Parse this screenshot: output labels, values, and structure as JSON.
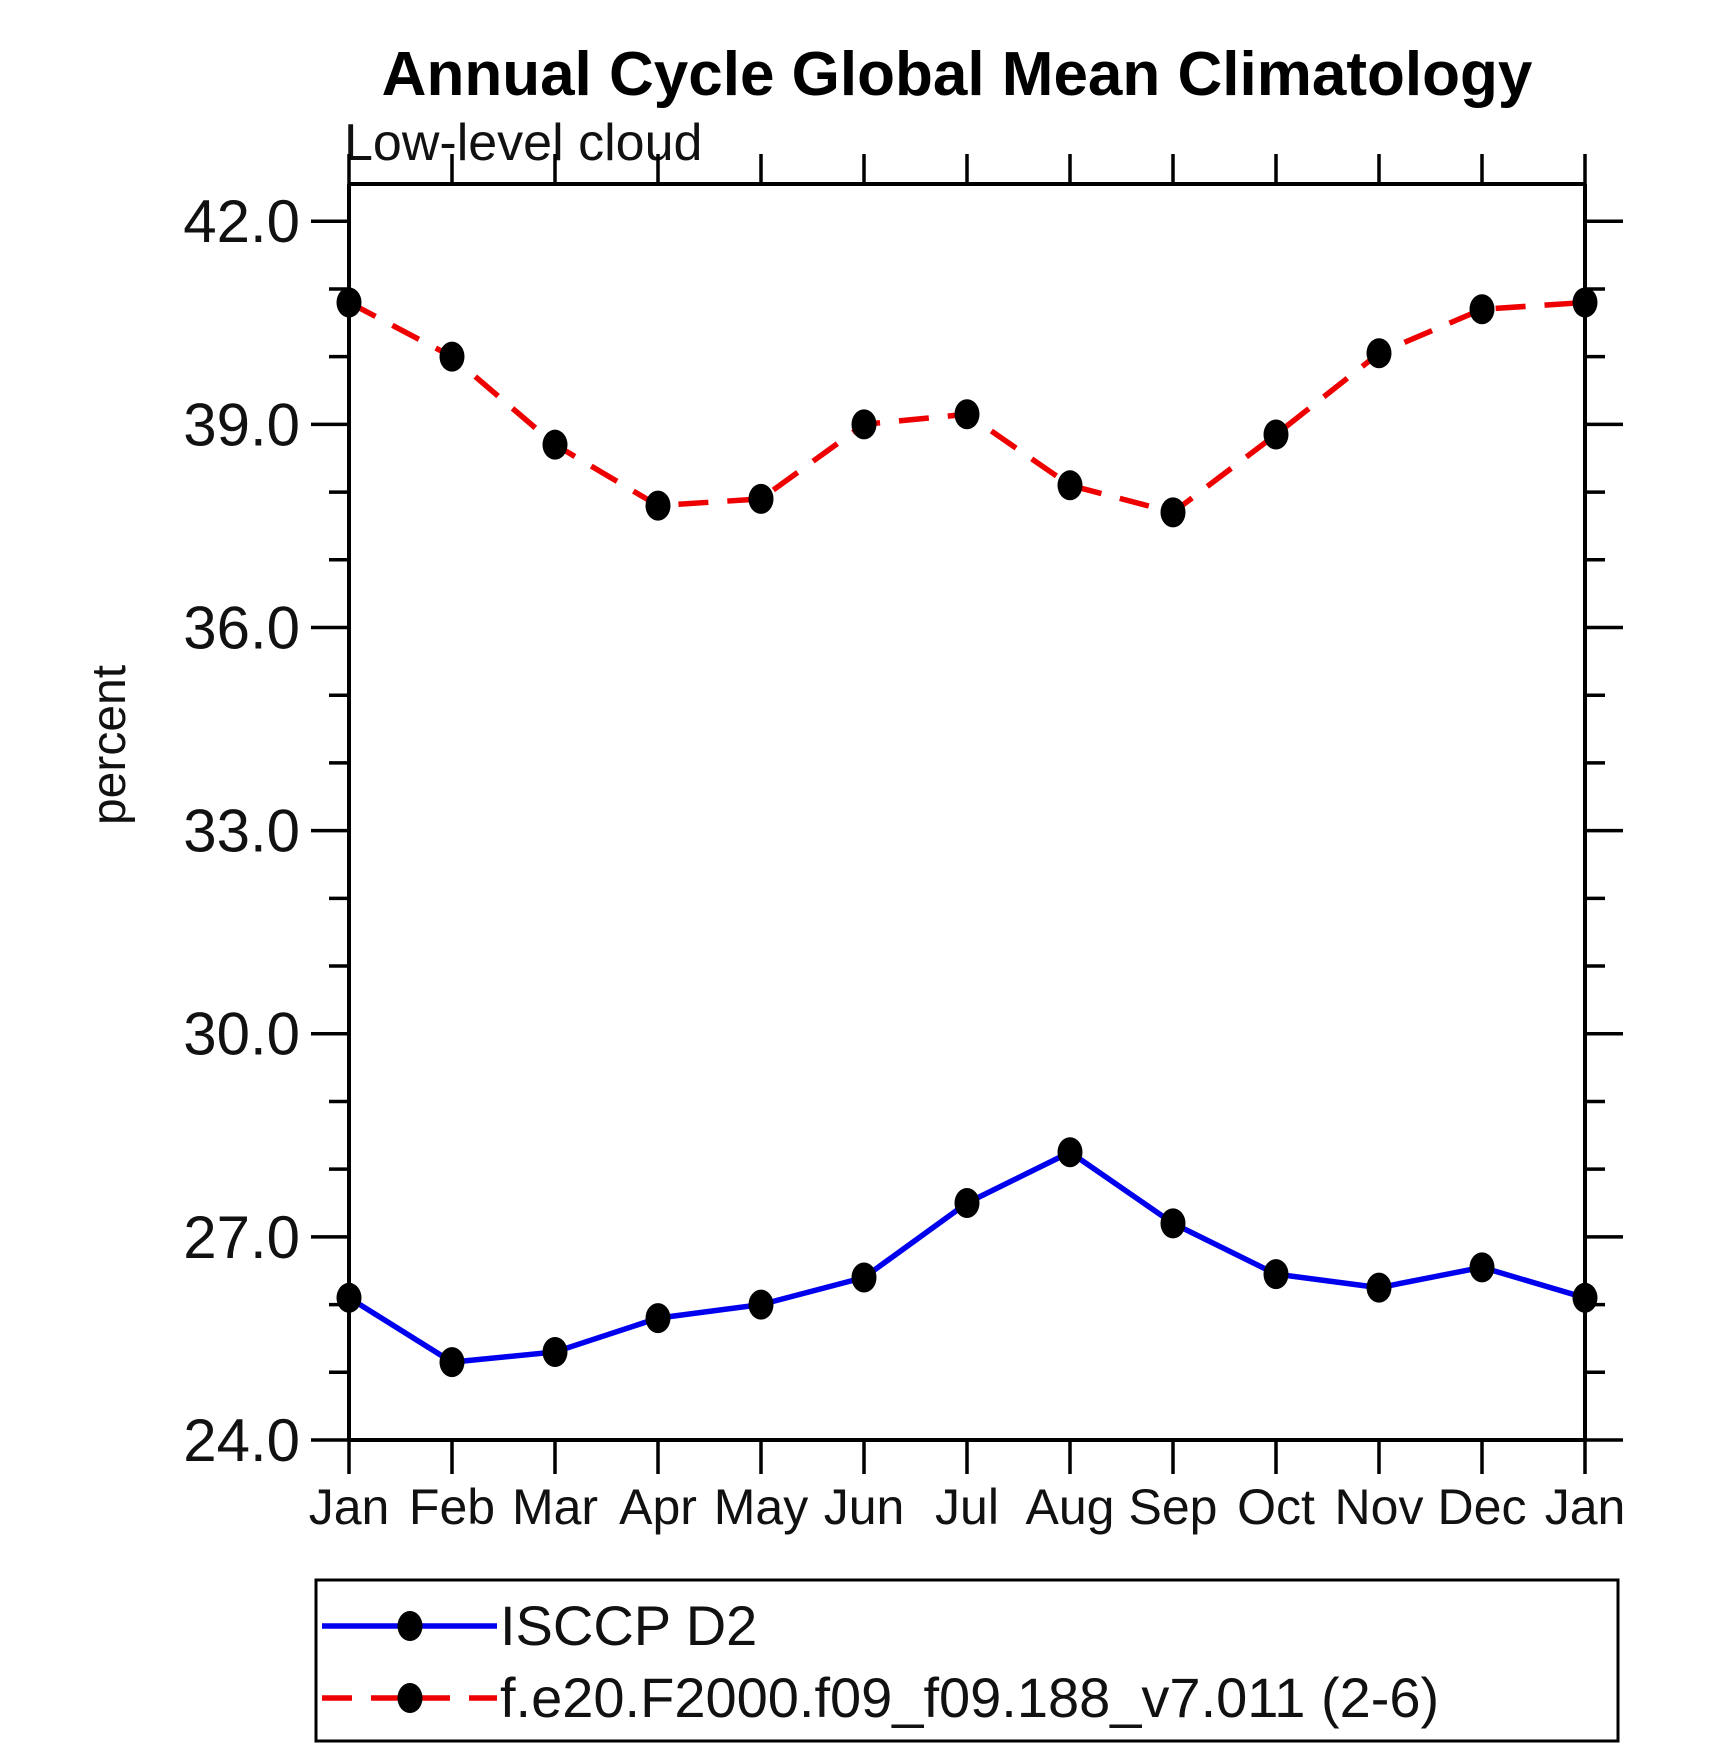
{
  "page": {
    "background": "#ffffff",
    "text_color": "#111111"
  },
  "chart_data": {
    "type": "line",
    "title": "Annual Cycle Global Mean Climatology",
    "subtitle": "Low-level cloud",
    "xlabel": "",
    "ylabel": "percent",
    "categories": [
      "Jan",
      "Feb",
      "Mar",
      "Apr",
      "May",
      "Jun",
      "Jul",
      "Aug",
      "Sep",
      "Oct",
      "Nov",
      "Dec",
      "Jan"
    ],
    "series": [
      {
        "name": "ISCCP D2",
        "color": "#0000ee",
        "line_style": "solid",
        "marker": "filled-circle",
        "marker_color": "#000000",
        "values": [
          26.1,
          25.15,
          25.3,
          25.8,
          26.0,
          26.4,
          27.5,
          28.25,
          27.2,
          26.45,
          26.25,
          26.55,
          26.1
        ]
      },
      {
        "name": "f.e20.F2000.f09_f09.188_v7.011 (2-6)",
        "color": "#ee0000",
        "line_style": "dashed",
        "marker": "filled-circle",
        "marker_color": "#000000",
        "values": [
          40.8,
          40.0,
          38.7,
          37.8,
          37.9,
          39.0,
          39.15,
          38.1,
          37.7,
          38.85,
          40.05,
          40.7,
          40.8
        ]
      }
    ],
    "yticks_major": [
      24,
      27,
      30,
      33,
      36,
      39,
      42
    ],
    "ytick_labels": [
      "24.0",
      "27.0",
      "30.0",
      "33.0",
      "36.0",
      "39.0",
      "42.0"
    ],
    "y_minor_tick_step": 1,
    "ylim": [
      24,
      42.55
    ],
    "grid": false,
    "legend_position": "bottom-left-box"
  }
}
